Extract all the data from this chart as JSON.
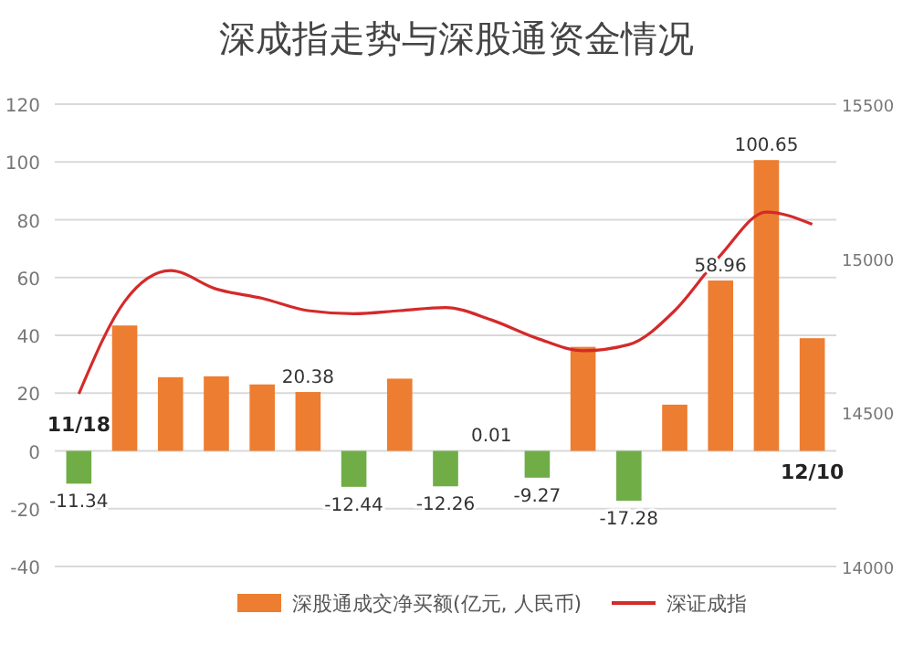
{
  "chart_data": {
    "type": "bar",
    "title": "深成指走势与深股通资金情况",
    "categories": [
      null,
      null,
      null,
      null,
      null,
      null,
      null,
      null,
      null,
      null,
      null,
      null,
      null,
      null,
      null,
      null,
      null
    ],
    "series": [
      {
        "name": "深股通成交净买额(亿元, 人民币)",
        "color": "#ed7d31",
        "colors": [
          "#70ad47",
          "#ed7d31",
          "#ed7d31",
          "#ed7d31",
          "#ed7d31",
          "#ed7d31",
          "#70ad47",
          "#ed7d31",
          "#70ad47",
          "#70ad47",
          "#70ad47",
          "#ed7d31",
          "#70ad47",
          "#ed7d31",
          "#ed7d31",
          "#ed7d31",
          "#ed7d31"
        ],
        "values": [
          -11.34,
          43.4,
          25.5,
          25.8,
          23,
          20.38,
          -12.44,
          25,
          -12.26,
          0.01,
          -9.27,
          36,
          -17.28,
          16,
          58.96,
          100.65,
          39
        ],
        "value_labels": [
          "-11.34",
          null,
          null,
          null,
          null,
          "20.38",
          "-12.44",
          null,
          "-12.26",
          "0.01",
          "-9.27",
          null,
          "-17.28",
          null,
          "58.96",
          "100.65",
          null
        ]
      },
      {
        "name": "深证成指",
        "type": "line",
        "axis": "y2",
        "color": "#d42a2a",
        "values": [
          14560,
          14860,
          14960,
          14900,
          14870,
          14830,
          14820,
          14830,
          14840,
          14800,
          14740,
          14700,
          14720,
          14830,
          15010,
          15150,
          15110
        ]
      }
    ],
    "annotations": [
      "11/18",
      "12/10"
    ],
    "ylim": [
      -40,
      120
    ],
    "yticks": [
      -40,
      -20,
      0,
      20,
      40,
      60,
      80,
      100,
      120
    ],
    "y2lim": [
      14000,
      15500
    ],
    "y2ticks": [
      14000,
      14500,
      15000,
      15500
    ],
    "grid": "y",
    "legend": "bottom",
    "marker": "none",
    "line_style": "solid"
  }
}
